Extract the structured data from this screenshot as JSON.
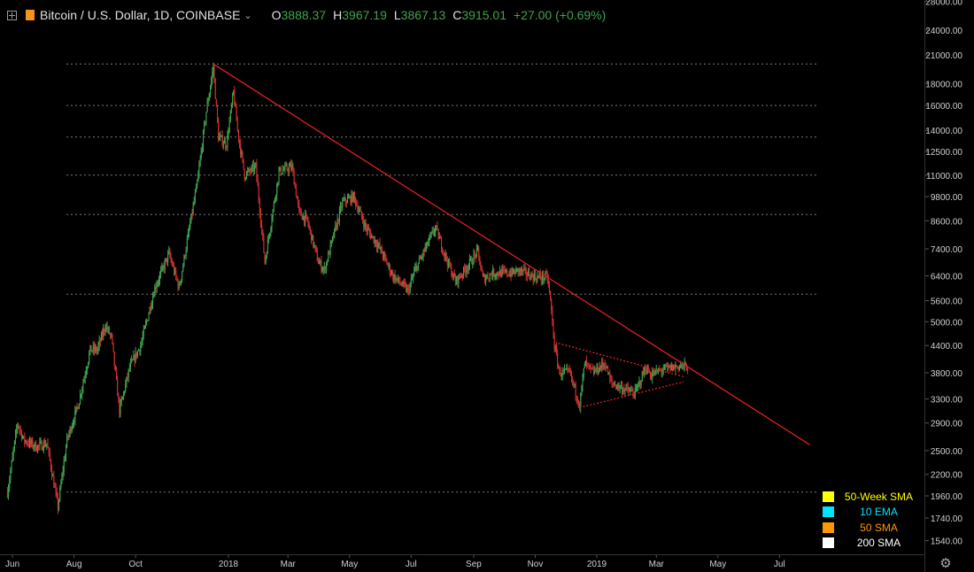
{
  "header": {
    "title": "Bitcoin / U.S. Dollar, 1D, COINBASE",
    "caret": "⌄",
    "open_key": "O",
    "open": "3888.37",
    "high_key": "H",
    "high": "3967.19",
    "low_key": "L",
    "low": "3867.13",
    "close_key": "C",
    "close": "3915.01",
    "change": "+27.00 (+0.69%)",
    "symbol_color": "#f7931a"
  },
  "legend": [
    {
      "label": "50-Week SMA",
      "color": "#ffff00"
    },
    {
      "label": "10 EMA",
      "color": "#00e5ff"
    },
    {
      "label": "50 SMA",
      "color": "#ff9800"
    },
    {
      "label": "200 SMA",
      "color": "#ffffff"
    }
  ],
  "colors": {
    "up": "#3fa34d",
    "down": "#d32f2f",
    "trendline": "#e0201e",
    "grid": "#777777",
    "background": "#000000"
  },
  "chart_data": {
    "type": "candlestick",
    "y_scale": "log",
    "y_ticks": [
      "28000.00",
      "24000.00",
      "21000.00",
      "18000.00",
      "16000.00",
      "14000.00",
      "12500.00",
      "11000.00",
      "9800.00",
      "8600.00",
      "7400.00",
      "6400.00",
      "5600.00",
      "5000.00",
      "4400.00",
      "3800.00",
      "3300.00",
      "2900.00",
      "2500.00",
      "2200.00",
      "1960.00",
      "1740.00",
      "1540.00"
    ],
    "x_ticks": [
      {
        "label": "Jun",
        "date": "2017-06-01"
      },
      {
        "label": "Aug",
        "date": "2017-08-01"
      },
      {
        "label": "Oct",
        "date": "2017-10-01"
      },
      {
        "label": "2018",
        "date": "2018-01-01"
      },
      {
        "label": "Mar",
        "date": "2018-03-01"
      },
      {
        "label": "May",
        "date": "2018-05-01"
      },
      {
        "label": "Jul",
        "date": "2018-07-01"
      },
      {
        "label": "Sep",
        "date": "2018-09-01"
      },
      {
        "label": "Nov",
        "date": "2018-11-01"
      },
      {
        "label": "2019",
        "date": "2019-01-01"
      },
      {
        "label": "Mar",
        "date": "2019-03-01"
      },
      {
        "label": "May",
        "date": "2019-05-01"
      },
      {
        "label": "Jul",
        "date": "2019-07-01"
      }
    ],
    "price_path": [
      [
        "2017-05-27",
        2000
      ],
      [
        "2017-06-06",
        2900
      ],
      [
        "2017-06-12",
        2650
      ],
      [
        "2017-06-25",
        2550
      ],
      [
        "2017-07-05",
        2600
      ],
      [
        "2017-07-16",
        1850
      ],
      [
        "2017-07-25",
        2650
      ],
      [
        "2017-08-05",
        3200
      ],
      [
        "2017-08-17",
        4300
      ],
      [
        "2017-08-24",
        4300
      ],
      [
        "2017-09-01",
        4900
      ],
      [
        "2017-09-07",
        4600
      ],
      [
        "2017-09-15",
        3100
      ],
      [
        "2017-09-25",
        3900
      ],
      [
        "2017-10-06",
        4400
      ],
      [
        "2017-10-20",
        6000
      ],
      [
        "2017-11-03",
        7200
      ],
      [
        "2017-11-13",
        6000
      ],
      [
        "2017-11-23",
        8200
      ],
      [
        "2017-12-01",
        10500
      ],
      [
        "2017-12-10",
        15500
      ],
      [
        "2017-12-17",
        19700
      ],
      [
        "2017-12-22",
        13500
      ],
      [
        "2017-12-30",
        13000
      ],
      [
        "2018-01-06",
        17200
      ],
      [
        "2018-01-10",
        14000
      ],
      [
        "2018-01-17",
        11000
      ],
      [
        "2018-01-28",
        11500
      ],
      [
        "2018-02-06",
        6900
      ],
      [
        "2018-02-20",
        11200
      ],
      [
        "2018-03-05",
        11500
      ],
      [
        "2018-03-12",
        9000
      ],
      [
        "2018-03-20",
        8600
      ],
      [
        "2018-03-31",
        6900
      ],
      [
        "2018-04-06",
        6600
      ],
      [
        "2018-04-24",
        9500
      ],
      [
        "2018-05-05",
        9800
      ],
      [
        "2018-05-17",
        8300
      ],
      [
        "2018-05-30",
        7500
      ],
      [
        "2018-06-13",
        6400
      ],
      [
        "2018-06-28",
        5900
      ],
      [
        "2018-07-05",
        6600
      ],
      [
        "2018-07-25",
        8300
      ],
      [
        "2018-08-05",
        7000
      ],
      [
        "2018-08-14",
        6200
      ],
      [
        "2018-08-25",
        6700
      ],
      [
        "2018-09-05",
        7300
      ],
      [
        "2018-09-10",
        6300
      ],
      [
        "2018-09-20",
        6500
      ],
      [
        "2018-10-10",
        6500
      ],
      [
        "2018-10-15",
        6600
      ],
      [
        "2018-11-01",
        6350
      ],
      [
        "2018-11-13",
        6350
      ],
      [
        "2018-11-16",
        5600
      ],
      [
        "2018-11-20",
        4400
      ],
      [
        "2018-11-25",
        3800
      ],
      [
        "2018-12-05",
        3800
      ],
      [
        "2018-12-15",
        3200
      ],
      [
        "2018-12-20",
        4000
      ],
      [
        "2018-12-28",
        3800
      ],
      [
        "2019-01-09",
        4000
      ],
      [
        "2019-01-15",
        3600
      ],
      [
        "2019-02-01",
        3450
      ],
      [
        "2019-02-08",
        3400
      ],
      [
        "2019-02-18",
        3900
      ],
      [
        "2019-02-24",
        3750
      ],
      [
        "2019-03-05",
        3850
      ],
      [
        "2019-03-15",
        3900
      ],
      [
        "2019-03-25",
        3950
      ],
      [
        "2019-04-01",
        3915
      ]
    ],
    "trendline": {
      "from": [
        "2017-12-17",
        20000
      ],
      "to": [
        "2019-07-31",
        2580
      ]
    },
    "triangle": {
      "upper": {
        "from": [
          "2018-11-24",
          4450
        ],
        "to": [
          "2019-03-28",
          3720
        ]
      },
      "lower": {
        "from": [
          "2018-12-15",
          3150
        ],
        "to": [
          "2019-03-28",
          3620
        ]
      }
    },
    "horizontal_levels": [
      20000,
      16000,
      13500,
      11000,
      8900,
      5800,
      2000
    ]
  }
}
